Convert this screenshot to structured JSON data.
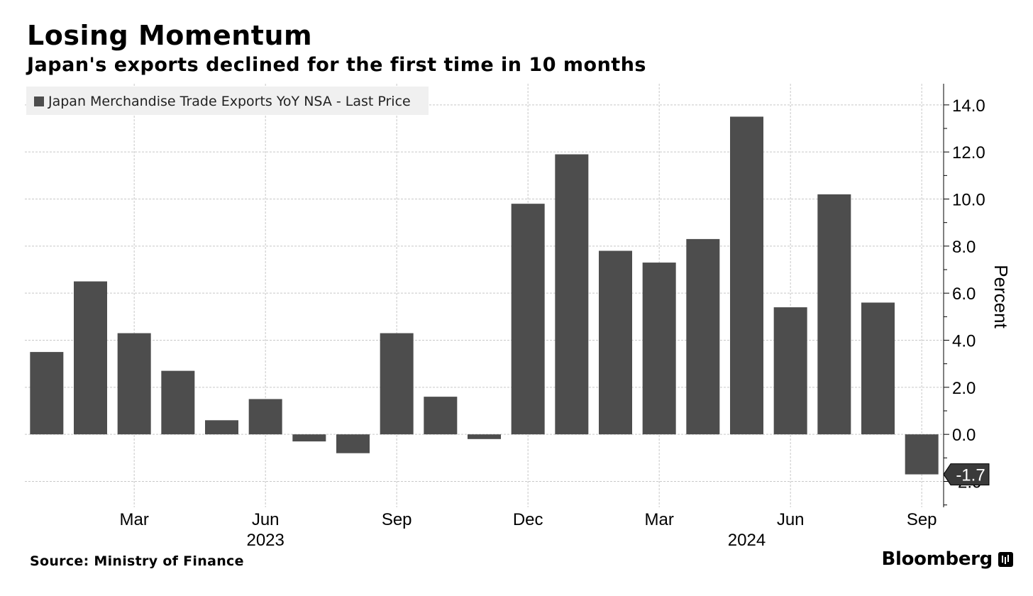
{
  "header": {
    "title": "Losing Momentum",
    "subtitle": "Japan's exports declined for the first time in 10 months"
  },
  "footer": {
    "source": "Source: Ministry of Finance",
    "brand": "Bloomberg",
    "brand_icon": "bloomberg-terminal-icon"
  },
  "colors": {
    "bar": "#4d4d4d",
    "grid": "#c8c8c8",
    "legend_bg": "#f0f0f0",
    "axis": "#000000"
  },
  "chart_data": {
    "type": "bar",
    "categories": [
      "2023-01",
      "2023-02",
      "2023-03",
      "2023-04",
      "2023-05",
      "2023-06",
      "2023-07",
      "2023-08",
      "2023-09",
      "2023-10",
      "2023-11",
      "2023-12",
      "2024-01",
      "2024-02",
      "2024-03",
      "2024-04",
      "2024-05",
      "2024-06",
      "2024-07",
      "2024-08",
      "2024-09"
    ],
    "series": [
      {
        "name": "Japan Merchandise Trade Exports YoY NSA - Last Price",
        "values": [
          3.5,
          6.5,
          4.3,
          2.7,
          0.6,
          1.5,
          -0.3,
          -0.8,
          4.3,
          1.6,
          -0.2,
          9.8,
          11.9,
          7.8,
          7.3,
          8.3,
          13.5,
          5.4,
          10.2,
          5.6,
          -1.7
        ]
      }
    ],
    "legend": "top-left",
    "ylabel": "Percent",
    "ylim": [
      -3.1,
      14.9
    ],
    "y_axis_side": "right",
    "y_ticks": [
      -2.0,
      0.0,
      2.0,
      4.0,
      6.0,
      8.0,
      10.0,
      12.0,
      14.0
    ],
    "y_tick_labels": [
      "-2.0",
      "0.0",
      "2.0",
      "4.0",
      "6.0",
      "8.0",
      "10.0",
      "12.0",
      "14.0"
    ],
    "x_tick_labels": [
      {
        "category": "2023-03",
        "label": "Mar"
      },
      {
        "category": "2023-06",
        "label": "Jun"
      },
      {
        "category": "2023-09",
        "label": "Sep"
      },
      {
        "category": "2023-12",
        "label": "Dec"
      },
      {
        "category": "2024-03",
        "label": "Mar"
      },
      {
        "category": "2024-06",
        "label": "Jun"
      },
      {
        "category": "2024-09",
        "label": "Sep"
      }
    ],
    "year_labels": [
      {
        "category": "2023-06",
        "label": "2023"
      },
      {
        "category": "2024-05",
        "label": "2024"
      }
    ],
    "last_value_label": "-1.7",
    "grid": true
  }
}
